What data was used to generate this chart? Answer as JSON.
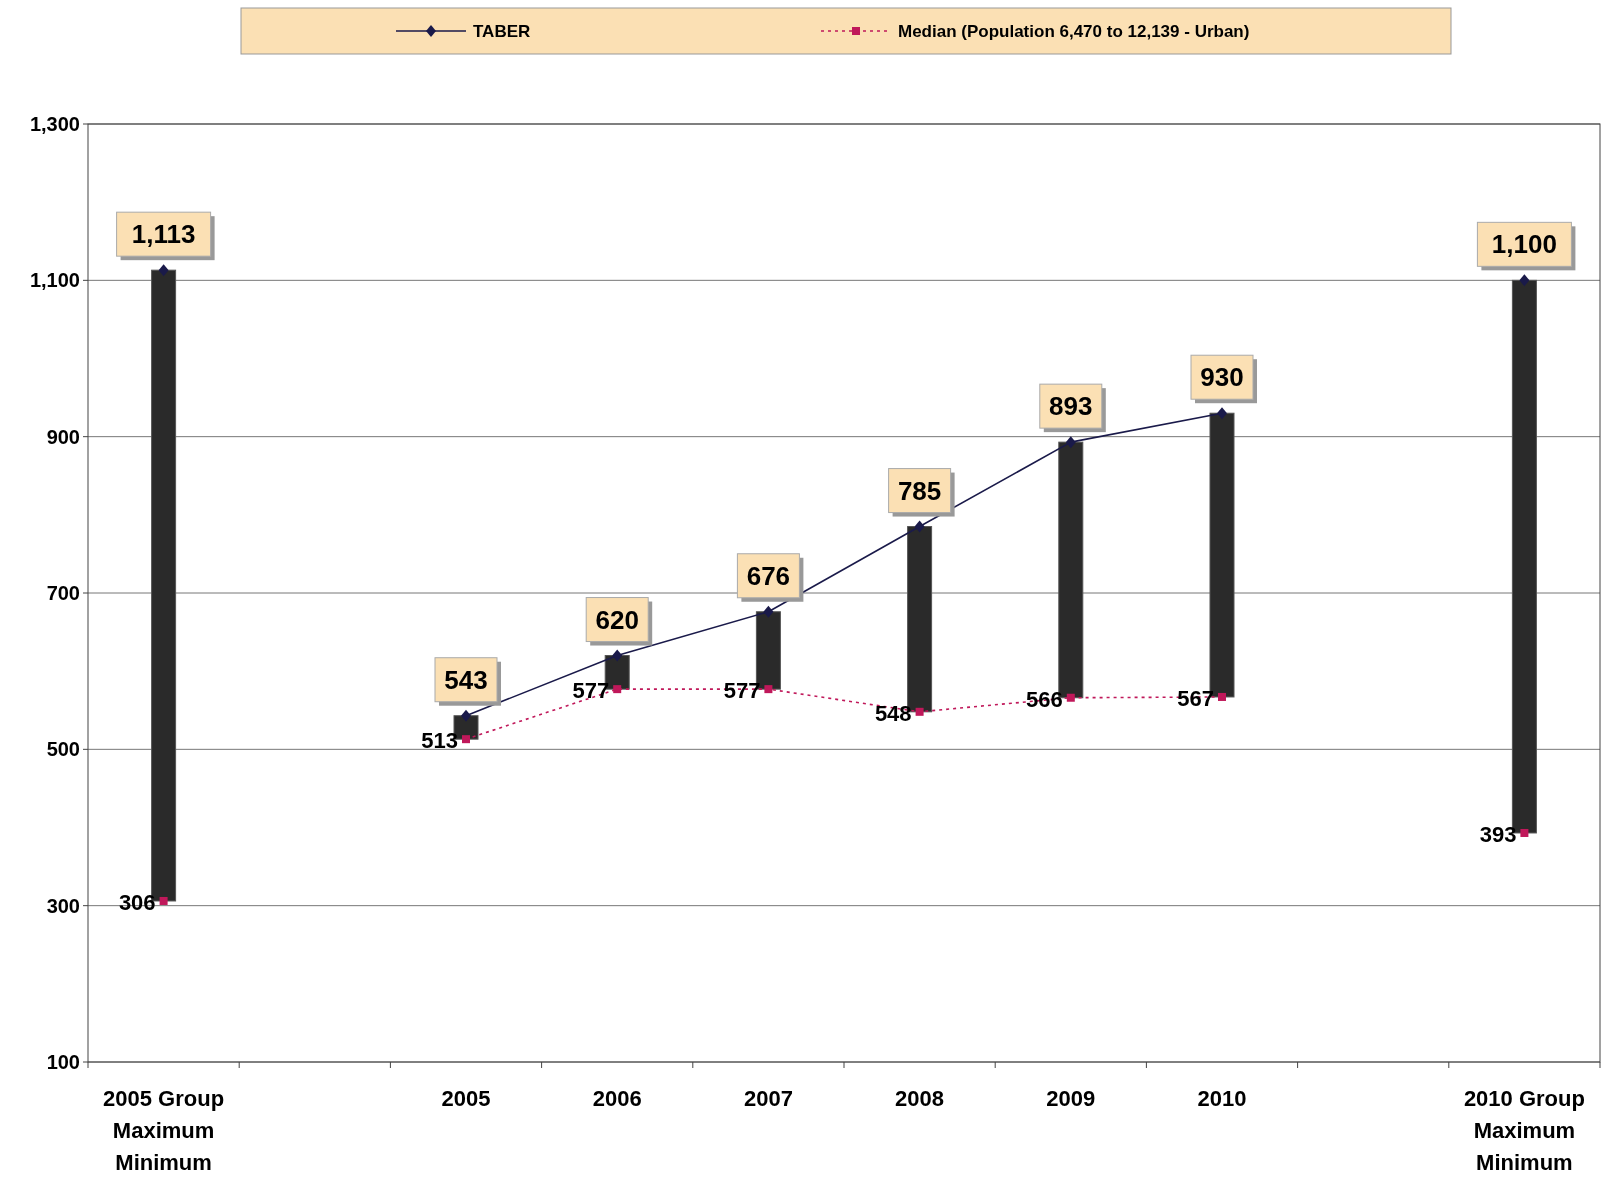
{
  "chart_data": {
    "type": "bar",
    "categories": [
      "2005 Group\nMaximum\nMinimum",
      null,
      "2005",
      "2006",
      "2007",
      "2008",
      "2009",
      "2010",
      null,
      "2010 Group\nMaximum\nMinimum"
    ],
    "series": [
      {
        "color": "#2a2a2a",
        "base": [
          306,
          null,
          513,
          577,
          577,
          548,
          566,
          567,
          null,
          393
        ],
        "values": [
          807,
          null,
          30,
          43,
          99,
          237,
          327,
          363,
          null,
          707
        ]
      },
      {
        "type": "line",
        "name": "TABER",
        "color": "#1a1a4a",
        "marker": "diamond",
        "line_style": "solid",
        "values": [
          1113,
          null,
          543,
          620,
          676,
          785,
          893,
          930,
          null,
          1100
        ],
        "value_labels": [
          "1,113",
          null,
          "543",
          "620",
          "676",
          "785",
          "893",
          "930",
          null,
          "1,100"
        ]
      },
      {
        "type": "line",
        "name": "Median (Population 6,470 to 12,139  - Urban)",
        "color": "#c0185a",
        "marker": "square",
        "line_style": "dotted",
        "values": [
          306,
          null,
          513,
          577,
          577,
          548,
          566,
          567,
          null,
          393
        ],
        "value_labels": [
          "306",
          null,
          "513",
          "577",
          "577",
          "548",
          "566",
          "567",
          null,
          "393"
        ]
      }
    ],
    "ylim": [
      100,
      1300
    ],
    "yticks": [
      100,
      300,
      500,
      700,
      900,
      {
        "value": 1100,
        "label": "1,100"
      },
      {
        "value": 1300,
        "label": "1,300"
      }
    ],
    "grid": "y",
    "legend": "top"
  }
}
